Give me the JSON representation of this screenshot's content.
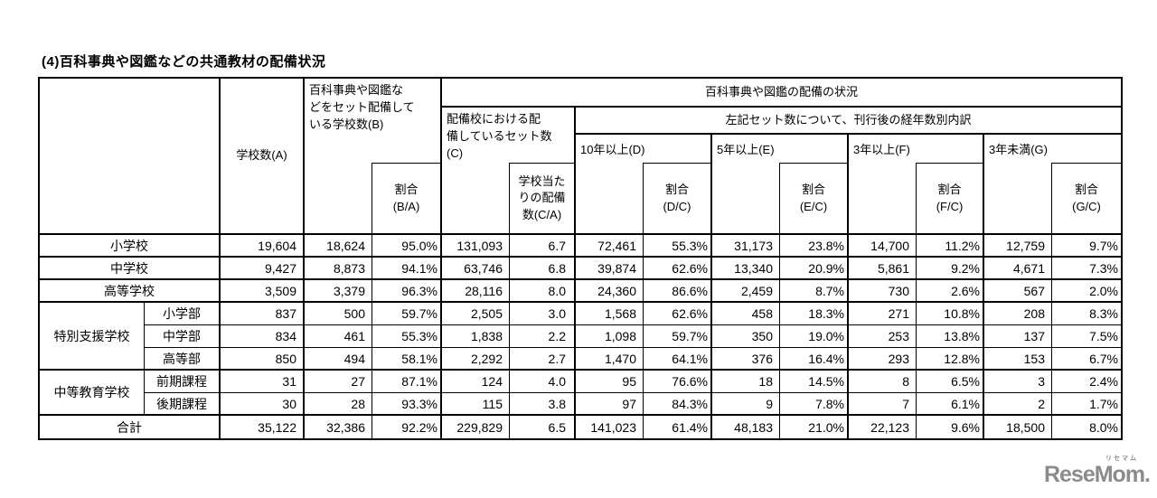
{
  "page": {
    "title": "(4)百科事典や図鑑などの共通教材の配備状況"
  },
  "table": {
    "headers": {
      "school_count": "学校数(A)",
      "equipped_schools": "百科事典や図鑑な\nどをセット配備して\nいる学校数(B)",
      "ratio_ba": "割合\n(B/A)",
      "deployment_status": "百科事典や図鑑の配備の状況",
      "sets_in_equipped": "配備校における配\n備しているセット数\n(C)",
      "sets_per_school": "学校当た\nりの配備\n数(C/A)",
      "age_breakdown": "左記セット数について、刊行後の経年数別内訳",
      "d": "10年以上(D)",
      "ratio_dc": "割合\n(D/C)",
      "e": "5年以上(E)",
      "ratio_ec": "割合\n(E/C)",
      "f": "3年以上(F)",
      "ratio_fc": "割合\n(F/C)",
      "g": "3年未満(G)",
      "ratio_gc": "割合\n(G/C)"
    },
    "rows": [
      {
        "label": "小学校",
        "label_colspan": 2,
        "block_end": true,
        "values": [
          "19,604",
          "18,624",
          "95.0%",
          "131,093",
          "6.7",
          "72,461",
          "55.3%",
          "31,173",
          "23.8%",
          "14,700",
          "11.2%",
          "12,759",
          "9.7%"
        ]
      },
      {
        "label": "中学校",
        "label_colspan": 2,
        "block_end": true,
        "values": [
          "9,427",
          "8,873",
          "94.1%",
          "63,746",
          "6.8",
          "39,874",
          "62.6%",
          "13,340",
          "20.9%",
          "5,861",
          "9.2%",
          "4,671",
          "7.3%"
        ]
      },
      {
        "label": "高等学校",
        "label_colspan": 2,
        "block_end": true,
        "values": [
          "3,509",
          "3,379",
          "96.3%",
          "28,116",
          "8.0",
          "24,360",
          "86.6%",
          "2,459",
          "8.7%",
          "730",
          "2.6%",
          "567",
          "2.0%"
        ]
      },
      {
        "group": "特別支援学校",
        "group_rowspan": 3,
        "label": "小学部",
        "block_end": false,
        "values": [
          "837",
          "500",
          "59.7%",
          "2,505",
          "3.0",
          "1,568",
          "62.6%",
          "458",
          "18.3%",
          "271",
          "10.8%",
          "208",
          "8.3%"
        ]
      },
      {
        "label": "中学部",
        "block_end": false,
        "values": [
          "834",
          "461",
          "55.3%",
          "1,838",
          "2.2",
          "1,098",
          "59.7%",
          "350",
          "19.0%",
          "253",
          "13.8%",
          "137",
          "7.5%"
        ]
      },
      {
        "label": "高等部",
        "block_end": true,
        "values": [
          "850",
          "494",
          "58.1%",
          "2,292",
          "2.7",
          "1,470",
          "64.1%",
          "376",
          "16.4%",
          "293",
          "12.8%",
          "153",
          "6.7%"
        ]
      },
      {
        "group": "中等教育学校",
        "group_rowspan": 2,
        "label": "前期課程",
        "block_end": false,
        "values": [
          "31",
          "27",
          "87.1%",
          "124",
          "4.0",
          "95",
          "76.6%",
          "18",
          "14.5%",
          "8",
          "6.5%",
          "3",
          "2.4%"
        ]
      },
      {
        "label": "後期課程",
        "block_end": true,
        "values": [
          "30",
          "28",
          "93.3%",
          "115",
          "3.8",
          "97",
          "84.3%",
          "9",
          "7.8%",
          "7",
          "6.1%",
          "2",
          "1.7%"
        ]
      },
      {
        "label": "合計",
        "label_colspan": 2,
        "block_end": true,
        "values": [
          "35,122",
          "32,386",
          "92.2%",
          "229,829",
          "6.5",
          "141,023",
          "61.4%",
          "48,183",
          "21.0%",
          "22,123",
          "9.6%",
          "18,500",
          "8.0%"
        ]
      }
    ]
  },
  "logo": {
    "text": "ReseMom.",
    "ruby": "リセマム",
    "color": "#8b8b8b"
  }
}
